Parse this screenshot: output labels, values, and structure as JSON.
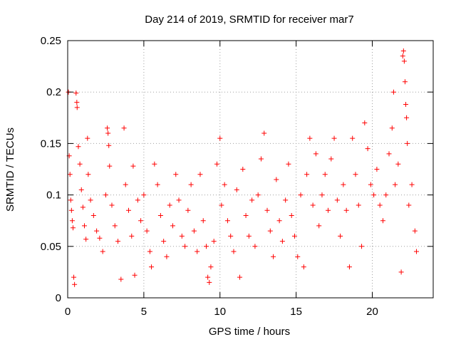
{
  "chart_data": {
    "type": "scatter",
    "title": "Day 214 of 2019, SRMTID for receiver mar7",
    "xlabel": "GPS time / hours",
    "ylabel": "SRMTID / TECUs",
    "xlim": [
      0,
      24
    ],
    "ylim": [
      0,
      0.25
    ],
    "x_ticks": [
      0,
      5,
      10,
      15,
      20
    ],
    "x_tick_labels": [
      "0",
      "5",
      "10",
      "15",
      "20"
    ],
    "y_ticks": [
      0,
      0.05,
      0.1,
      0.15,
      0.2,
      0.25
    ],
    "y_tick_labels": [
      "0",
      "0.05",
      "0.1",
      "0.15",
      "0.2",
      "0.25"
    ],
    "grid": true,
    "marker": "+",
    "series": [
      {
        "name": "SRMTID",
        "color": "#ff0000",
        "points": [
          [
            0.05,
            0.2
          ],
          [
            0.1,
            0.138
          ],
          [
            0.15,
            0.12
          ],
          [
            0.2,
            0.095
          ],
          [
            0.25,
            0.085
          ],
          [
            0.3,
            0.075
          ],
          [
            0.35,
            0.068
          ],
          [
            0.4,
            0.02
          ],
          [
            0.45,
            0.013
          ],
          [
            0.55,
            0.199
          ],
          [
            0.6,
            0.19
          ],
          [
            0.62,
            0.185
          ],
          [
            0.7,
            0.147
          ],
          [
            0.8,
            0.13
          ],
          [
            0.9,
            0.105
          ],
          [
            1.0,
            0.088
          ],
          [
            1.1,
            0.07
          ],
          [
            1.2,
            0.057
          ],
          [
            1.3,
            0.155
          ],
          [
            1.35,
            0.12
          ],
          [
            1.5,
            0.095
          ],
          [
            1.7,
            0.08
          ],
          [
            1.9,
            0.065
          ],
          [
            2.1,
            0.058
          ],
          [
            2.3,
            0.045
          ],
          [
            2.5,
            0.1
          ],
          [
            2.6,
            0.165
          ],
          [
            2.65,
            0.16
          ],
          [
            2.7,
            0.148
          ],
          [
            2.75,
            0.128
          ],
          [
            2.9,
            0.09
          ],
          [
            3.1,
            0.07
          ],
          [
            3.3,
            0.055
          ],
          [
            3.5,
            0.018
          ],
          [
            3.7,
            0.165
          ],
          [
            3.8,
            0.11
          ],
          [
            4.0,
            0.085
          ],
          [
            4.2,
            0.06
          ],
          [
            4.3,
            0.128
          ],
          [
            4.4,
            0.022
          ],
          [
            4.6,
            0.095
          ],
          [
            4.8,
            0.075
          ],
          [
            5.0,
            0.1
          ],
          [
            5.2,
            0.065
          ],
          [
            5.4,
            0.045
          ],
          [
            5.5,
            0.03
          ],
          [
            5.7,
            0.13
          ],
          [
            5.9,
            0.11
          ],
          [
            6.1,
            0.08
          ],
          [
            6.3,
            0.055
          ],
          [
            6.5,
            0.04
          ],
          [
            6.7,
            0.09
          ],
          [
            6.9,
            0.07
          ],
          [
            7.1,
            0.12
          ],
          [
            7.3,
            0.095
          ],
          [
            7.5,
            0.06
          ],
          [
            7.7,
            0.05
          ],
          [
            7.9,
            0.085
          ],
          [
            8.1,
            0.11
          ],
          [
            8.3,
            0.065
          ],
          [
            8.5,
            0.045
          ],
          [
            8.7,
            0.12
          ],
          [
            8.9,
            0.075
          ],
          [
            9.1,
            0.05
          ],
          [
            9.2,
            0.02
          ],
          [
            9.3,
            0.015
          ],
          [
            9.4,
            0.03
          ],
          [
            9.6,
            0.055
          ],
          [
            9.8,
            0.13
          ],
          [
            10.0,
            0.155
          ],
          [
            10.1,
            0.09
          ],
          [
            10.3,
            0.11
          ],
          [
            10.5,
            0.075
          ],
          [
            10.7,
            0.06
          ],
          [
            10.9,
            0.045
          ],
          [
            11.1,
            0.105
          ],
          [
            11.3,
            0.02
          ],
          [
            11.5,
            0.125
          ],
          [
            11.7,
            0.08
          ],
          [
            11.9,
            0.06
          ],
          [
            12.1,
            0.095
          ],
          [
            12.3,
            0.05
          ],
          [
            12.5,
            0.1
          ],
          [
            12.7,
            0.135
          ],
          [
            12.9,
            0.16
          ],
          [
            13.1,
            0.085
          ],
          [
            13.3,
            0.065
          ],
          [
            13.5,
            0.04
          ],
          [
            13.7,
            0.115
          ],
          [
            13.9,
            0.075
          ],
          [
            14.1,
            0.055
          ],
          [
            14.3,
            0.095
          ],
          [
            14.5,
            0.13
          ],
          [
            14.7,
            0.08
          ],
          [
            14.9,
            0.06
          ],
          [
            15.1,
            0.04
          ],
          [
            15.3,
            0.1
          ],
          [
            15.5,
            0.03
          ],
          [
            15.7,
            0.12
          ],
          [
            15.9,
            0.155
          ],
          [
            16.1,
            0.09
          ],
          [
            16.3,
            0.14
          ],
          [
            16.5,
            0.07
          ],
          [
            16.7,
            0.1
          ],
          [
            16.9,
            0.12
          ],
          [
            17.1,
            0.085
          ],
          [
            17.3,
            0.135
          ],
          [
            17.5,
            0.155
          ],
          [
            17.7,
            0.095
          ],
          [
            17.9,
            0.06
          ],
          [
            18.1,
            0.11
          ],
          [
            18.3,
            0.085
          ],
          [
            18.5,
            0.03
          ],
          [
            18.7,
            0.155
          ],
          [
            18.9,
            0.12
          ],
          [
            19.1,
            0.09
          ],
          [
            19.3,
            0.05
          ],
          [
            19.5,
            0.17
          ],
          [
            19.7,
            0.145
          ],
          [
            19.9,
            0.11
          ],
          [
            20.1,
            0.1
          ],
          [
            20.3,
            0.125
          ],
          [
            20.5,
            0.09
          ],
          [
            20.7,
            0.075
          ],
          [
            20.9,
            0.1
          ],
          [
            21.1,
            0.14
          ],
          [
            21.3,
            0.165
          ],
          [
            21.4,
            0.2
          ],
          [
            21.5,
            0.11
          ],
          [
            21.7,
            0.13
          ],
          [
            21.9,
            0.025
          ],
          [
            22.0,
            0.235
          ],
          [
            22.05,
            0.24
          ],
          [
            22.1,
            0.23
          ],
          [
            22.15,
            0.21
          ],
          [
            22.2,
            0.188
          ],
          [
            22.25,
            0.175
          ],
          [
            22.3,
            0.15
          ],
          [
            22.4,
            0.09
          ],
          [
            22.6,
            0.11
          ],
          [
            22.8,
            0.065
          ],
          [
            22.9,
            0.045
          ]
        ]
      }
    ]
  }
}
